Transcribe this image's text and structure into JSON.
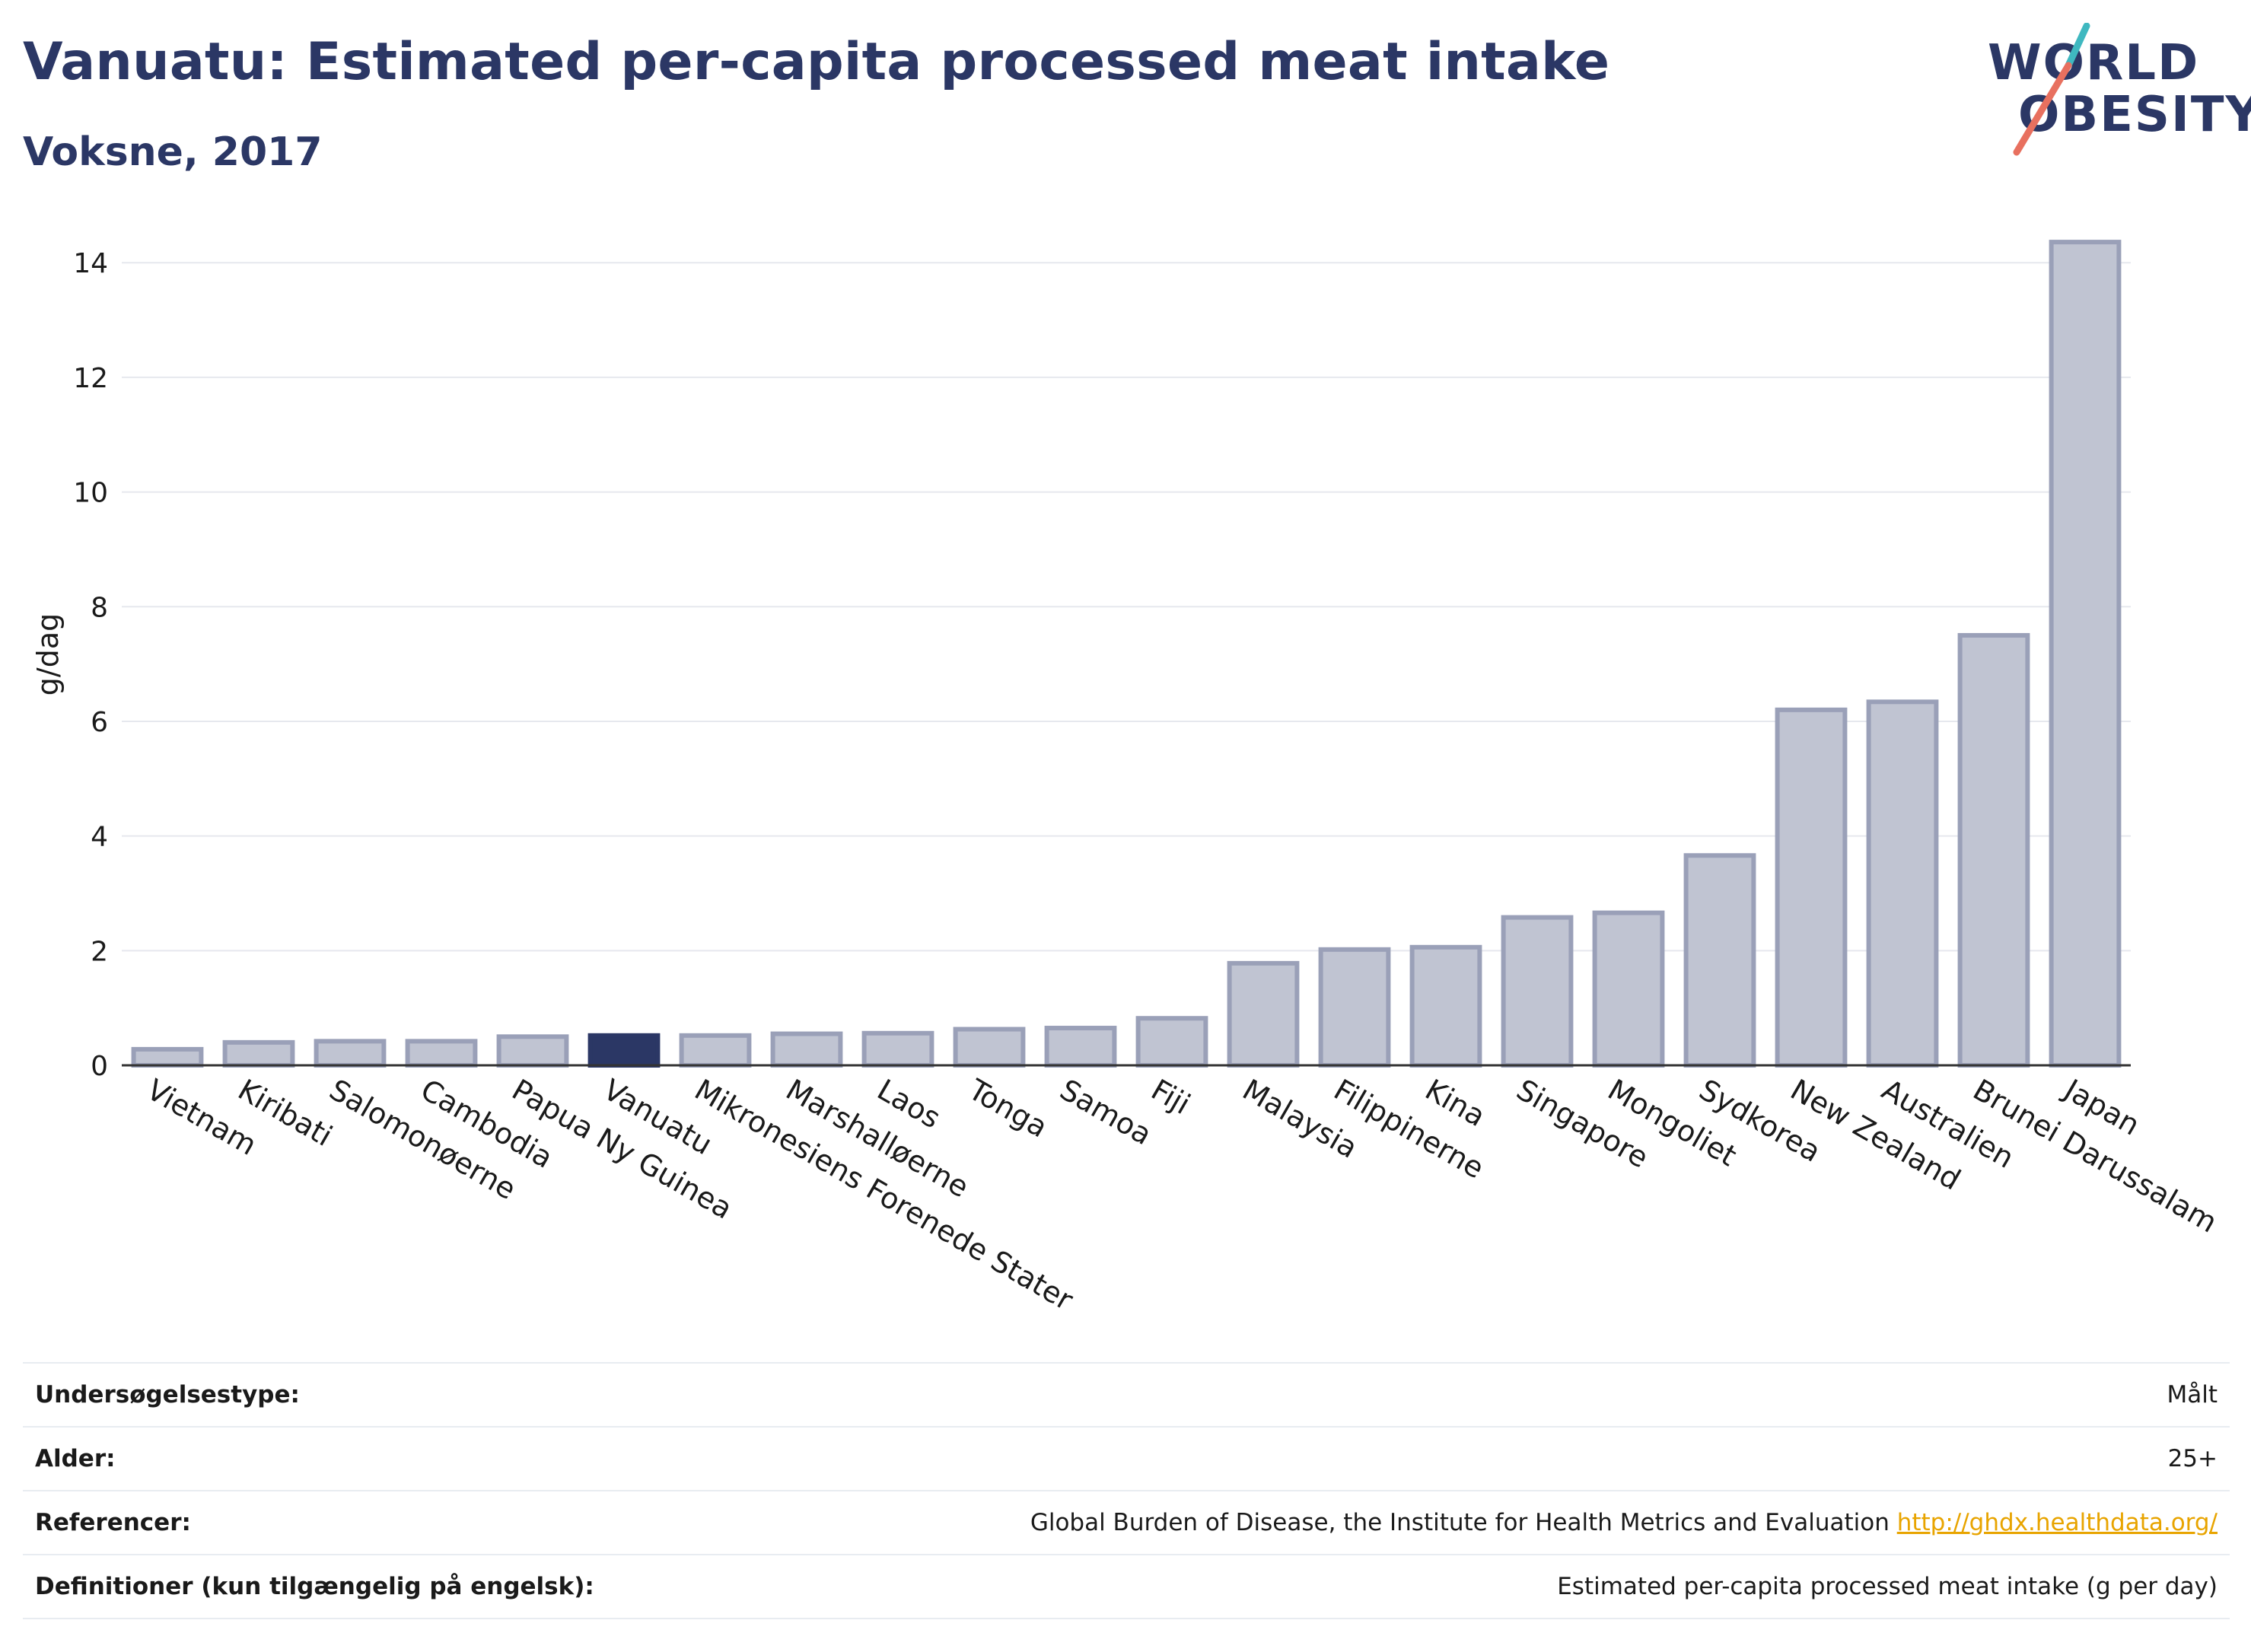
{
  "header": {
    "title": "Vanuatu: Estimated per-capita processed meat intake",
    "subtitle": "Voksne, 2017"
  },
  "logo": {
    "line1": "WORLD",
    "line2": "OBESITY",
    "accent_teal": "#3fb8c0",
    "accent_coral": "#e8705f"
  },
  "colors": {
    "bar": "#c0c4d2",
    "bar_stroke": "#9aa0b8",
    "highlight": "#2b3765",
    "grid": "#e6e8ee",
    "axis": "#333333"
  },
  "chart_data": {
    "type": "bar",
    "ylabel": "g/dag",
    "ylim": [
      0,
      14.6
    ],
    "yticks": [
      0,
      2,
      4,
      6,
      8,
      10,
      12,
      14
    ],
    "grid": true,
    "highlight": "Vanuatu",
    "categories": [
      "Vietnam",
      "Kiribati",
      "Salomonøerne",
      "Cambodia",
      "Papua Ny Guinea",
      "Vanuatu",
      "Mikronesiens Forenede Stater",
      "Marshalløerne",
      "Laos",
      "Tonga",
      "Samoa",
      "Fiji",
      "Malaysia",
      "Filippinerne",
      "Kina",
      "Singapore",
      "Mongoliet",
      "Sydkorea",
      "New Zealand",
      "Australien",
      "Brunei Darussalam",
      "Japan"
    ],
    "values": [
      0.28,
      0.4,
      0.42,
      0.42,
      0.5,
      0.52,
      0.52,
      0.55,
      0.56,
      0.63,
      0.65,
      0.82,
      1.78,
      2.02,
      2.06,
      2.58,
      2.66,
      3.66,
      6.2,
      6.34,
      7.5,
      14.36
    ]
  },
  "info": {
    "rows": [
      {
        "label": "Undersøgelsestype:",
        "value": "Målt",
        "link": ""
      },
      {
        "label": "Alder:",
        "value": "25+",
        "link": ""
      },
      {
        "label": "Referencer:",
        "value": "Global Burden of Disease, the Institute for Health Metrics and Evaluation ",
        "link": "http://ghdx.healthdata.org/"
      },
      {
        "label": "Definitioner (kun tilgængelig på engelsk):",
        "value": "Estimated per-capita processed meat intake (g per day)",
        "link": ""
      }
    ]
  }
}
